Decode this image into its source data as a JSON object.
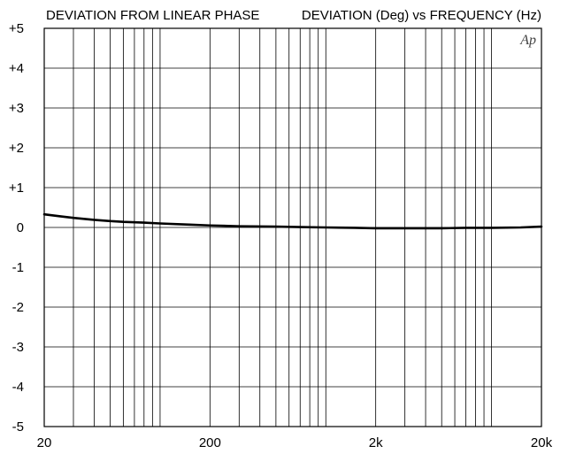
{
  "chart_data": {
    "type": "line",
    "title": "DEVIATION FROM LINEAR PHASE",
    "subtitle": "DEVIATION (Deg) vs FREQUENCY (Hz)",
    "watermark": "Ap",
    "xlabel": "",
    "ylabel": "",
    "x_scale": "log",
    "xlim": [
      20,
      20000
    ],
    "ylim": [
      -5,
      5
    ],
    "grid": true,
    "x_ticks": [
      {
        "value": 20,
        "label": "20"
      },
      {
        "value": 200,
        "label": "200"
      },
      {
        "value": 2000,
        "label": "2k"
      },
      {
        "value": 20000,
        "label": "20k"
      }
    ],
    "y_ticks": [
      {
        "value": 5,
        "label": "+5"
      },
      {
        "value": 4,
        "label": "+4"
      },
      {
        "value": 3,
        "label": "+3"
      },
      {
        "value": 2,
        "label": "+2"
      },
      {
        "value": 1,
        "label": "+1"
      },
      {
        "value": 0,
        "label": "0"
      },
      {
        "value": -1,
        "label": "-1"
      },
      {
        "value": -2,
        "label": "-2"
      },
      {
        "value": -3,
        "label": "-3"
      },
      {
        "value": -4,
        "label": "-4"
      },
      {
        "value": -5,
        "label": "-5"
      }
    ],
    "series": [
      {
        "color": "#000000",
        "x": [
          20,
          25,
          30,
          40,
          50,
          60,
          80,
          100,
          150,
          200,
          300,
          500,
          700,
          1000,
          1500,
          2000,
          3000,
          5000,
          7000,
          10000,
          15000,
          20000
        ],
        "y": [
          0.33,
          0.28,
          0.24,
          0.19,
          0.16,
          0.14,
          0.12,
          0.1,
          0.07,
          0.05,
          0.03,
          0.02,
          0.01,
          0.0,
          -0.01,
          -0.02,
          -0.02,
          -0.02,
          -0.01,
          -0.01,
          0.0,
          0.02
        ]
      }
    ]
  }
}
